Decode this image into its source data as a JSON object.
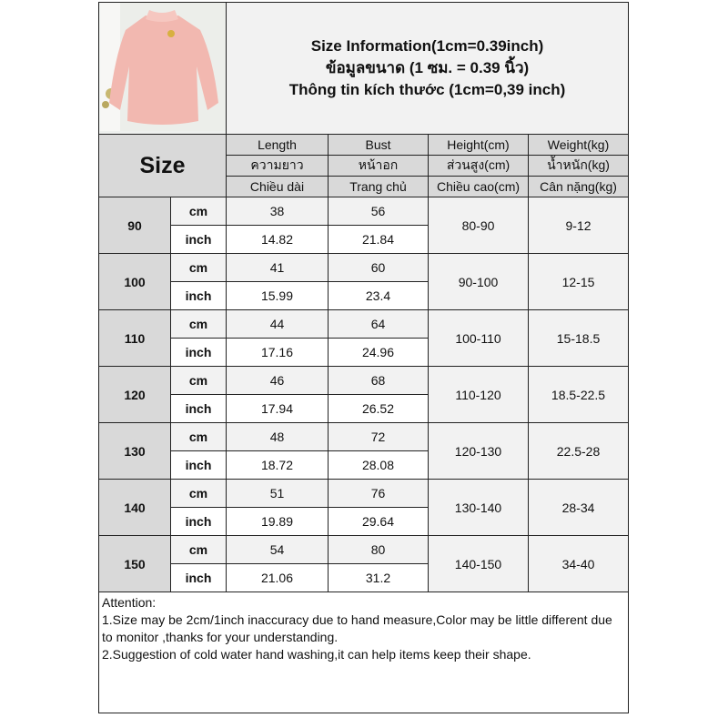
{
  "title_lines": [
    "Size Information(1cm=0.39inch)",
    "ข้อมูลขนาด (1 ซม. = 0.39 นิ้ว)",
    "Thông tin kích thước (1cm=0,39 inch)"
  ],
  "size_label": "Size",
  "columns": [
    [
      "Length",
      "ความยาว",
      "Chiều dài"
    ],
    [
      "Bust",
      "หน้าอก",
      "Trang chủ"
    ],
    [
      "Height(cm)",
      "ส่วนสูง(cm)",
      "Chiều cao(cm)"
    ],
    [
      "Weight(kg)",
      "น้ำหนัก(kg)",
      "Cân nặng(kg)"
    ]
  ],
  "unit_cm": "cm",
  "unit_inch": "inch",
  "rows": [
    {
      "size": "90",
      "length_cm": "38",
      "bust_cm": "56",
      "length_inch": "14.82",
      "bust_inch": "21.84",
      "height": "80-90",
      "weight": "9-12"
    },
    {
      "size": "100",
      "length_cm": "41",
      "bust_cm": "60",
      "length_inch": "15.99",
      "bust_inch": "23.4",
      "height": "90-100",
      "weight": "12-15"
    },
    {
      "size": "110",
      "length_cm": "44",
      "bust_cm": "64",
      "length_inch": "17.16",
      "bust_inch": "24.96",
      "height": "100-110",
      "weight": "15-18.5"
    },
    {
      "size": "120",
      "length_cm": "46",
      "bust_cm": "68",
      "length_inch": "17.94",
      "bust_inch": "26.52",
      "height": "110-120",
      "weight": "18.5-22.5"
    },
    {
      "size": "130",
      "length_cm": "48",
      "bust_cm": "72",
      "length_inch": "18.72",
      "bust_inch": "28.08",
      "height": "120-130",
      "weight": "22.5-28"
    },
    {
      "size": "140",
      "length_cm": "51",
      "bust_cm": "76",
      "length_inch": "19.89",
      "bust_inch": "29.64",
      "height": "130-140",
      "weight": "28-34"
    },
    {
      "size": "150",
      "length_cm": "54",
      "bust_cm": "80",
      "length_inch": "21.06",
      "bust_inch": "31.2",
      "height": "140-150",
      "weight": "34-40"
    }
  ],
  "notes": [
    "Attention:",
    "1.Size may be 2cm/1inch inaccuracy due to hand measure,Color may be little different due to monitor ,thanks for your understanding.",
    "2.Suggestion of cold water hand washing,it can help items keep their shape."
  ],
  "colors": {
    "header_grey": "#d9d9d9",
    "light_grey": "#f2f2f2",
    "shirt_pink": "#f2b8b0"
  }
}
